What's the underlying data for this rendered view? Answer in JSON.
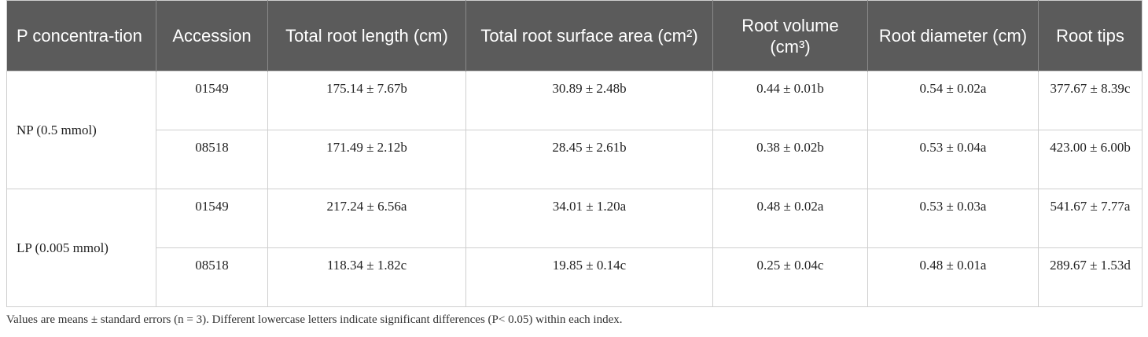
{
  "table": {
    "headers": [
      "P concentra-tion",
      "Accession",
      "Total root length (cm)",
      "Total root surface area (cm²)",
      "Root volume (cm³)",
      "Root diameter (cm)",
      "Root tips"
    ],
    "groups": [
      {
        "label": "NP (0.5 mmol)",
        "rows": [
          [
            "01549",
            "175.14 ± 7.67b",
            "30.89 ± 2.48b",
            "0.44 ± 0.01b",
            "0.54 ± 0.02a",
            "377.67 ± 8.39c"
          ],
          [
            "08518",
            "171.49 ± 2.12b",
            "28.45 ± 2.61b",
            "0.38 ± 0.02b",
            "0.53 ± 0.04a",
            "423.00 ± 6.00b"
          ]
        ]
      },
      {
        "label": "LP (0.005 mmol)",
        "rows": [
          [
            "01549",
            "217.24 ± 6.56a",
            "34.01 ± 1.20a",
            "0.48 ± 0.02a",
            "0.53 ± 0.03a",
            "541.67 ± 7.77a"
          ],
          [
            "08518",
            "118.34 ± 1.82c",
            "19.85 ± 0.14c",
            "0.25 ± 0.04c",
            "0.48 ± 0.01a",
            "289.67 ± 1.53d"
          ]
        ]
      }
    ]
  },
  "footnote": "Values are means ± standard errors (n = 3). Different lowercase letters indicate significant differences (P< 0.05) within each index."
}
